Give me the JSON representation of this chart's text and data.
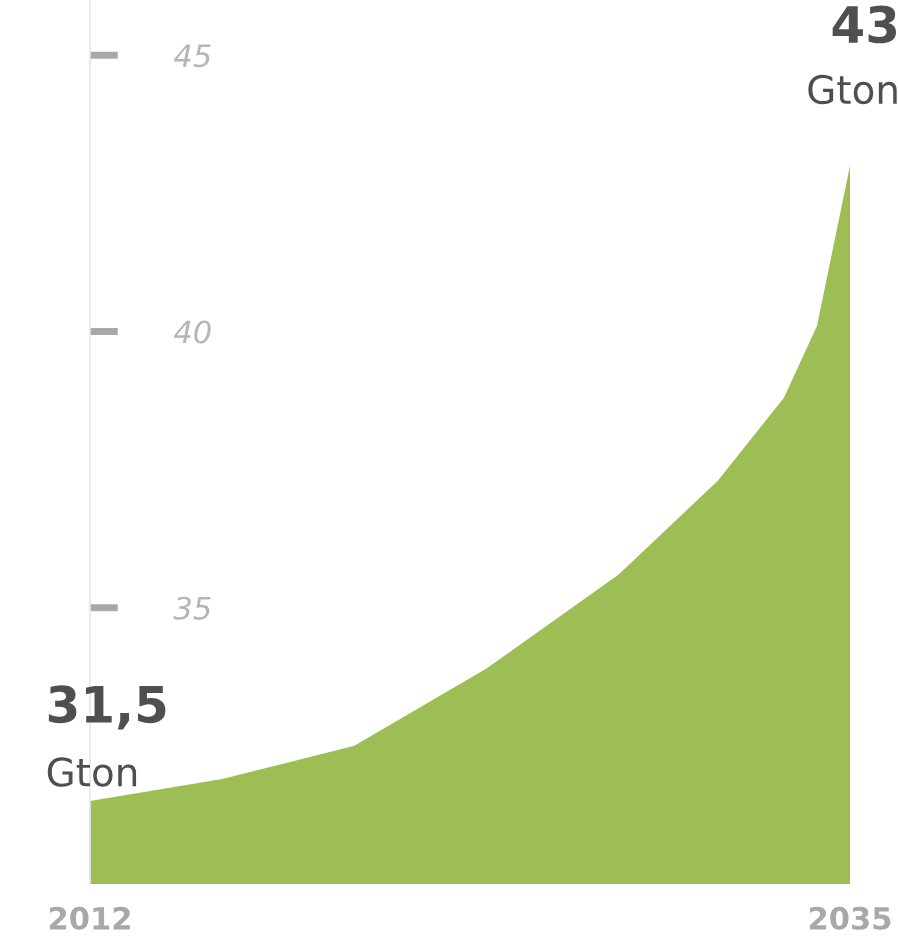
{
  "chart_data": {
    "type": "area",
    "x": [
      2012,
      2016,
      2020,
      2024,
      2028,
      2031,
      2033,
      2034,
      2035
    ],
    "series": [
      {
        "color": "#9dbd55",
        "values": [
          31.5,
          31.9,
          32.5,
          33.9,
          35.6,
          37.3,
          38.8,
          40.1,
          43
        ],
        "value_labels": [
          "31,5\nGton",
          null,
          null,
          null,
          null,
          null,
          null,
          null,
          "43\nGton"
        ]
      }
    ],
    "xlim": [
      2012,
      2035
    ],
    "xticks": [
      2012,
      2035
    ],
    "ylim": [
      30,
      46
    ],
    "yticks": [
      35,
      40,
      45
    ],
    "grid": false
  }
}
